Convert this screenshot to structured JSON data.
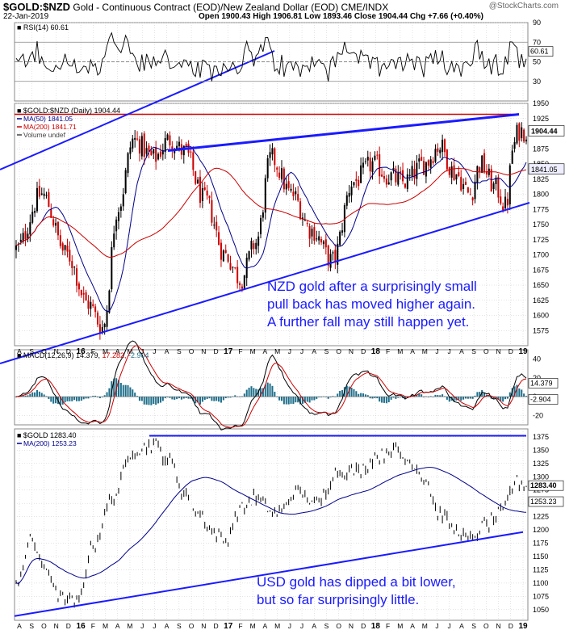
{
  "header": {
    "symbol": "$GOLD:$NZD",
    "subtitle": "Gold - Continuous Contract (EOD)/New Zealand Dollar (EOD)  CME/INDX",
    "date": "22-Jan-2019",
    "ohlc": "Open 1900.43  High 1906.81  Low 1893.46  Close 1904.44  Chg +7.66 (+0.40%)",
    "brand": "@StockCharts.com"
  },
  "colors": {
    "price_red": "#cc0000",
    "price_black": "#000000",
    "ma50": "#00008b",
    "ma200": "#cc0000",
    "annotation_line": "#1a1aff",
    "resistance": "#d40000",
    "macd_hist": "#1f6f8b",
    "grid": "#c8c8c8",
    "annotation_text": "#1a1aff"
  },
  "x_axis_labels": [
    "A",
    "S",
    "O",
    "N",
    "D",
    "16",
    "F",
    "M",
    "A",
    "M",
    "J",
    "J",
    "A",
    "S",
    "O",
    "N",
    "D",
    "17",
    "F",
    "M",
    "A",
    "M",
    "J",
    "J",
    "A",
    "S",
    "O",
    "N",
    "D",
    "18",
    "F",
    "M",
    "A",
    "M",
    "J",
    "J",
    "A",
    "S",
    "O",
    "N",
    "D",
    "19"
  ],
  "chart_data": [
    {
      "type": "line",
      "panel": "rsi",
      "legend": "RSI(14) 60.61",
      "last_value_label": "60.61",
      "ylim": [
        10,
        90
      ],
      "ticks": [
        30,
        50,
        70,
        90
      ],
      "reference_lines": [
        30,
        70
      ]
    },
    {
      "type": "candlestick",
      "panel": "main",
      "legend": "$GOLD:$NZD (Daily) 1904.44",
      "series": [
        {
          "name": "MA(50) 1841.05",
          "last": 1841.05
        },
        {
          "name": "MA(200) 1841.71",
          "last": 1841.71
        },
        {
          "name": "Volume undef"
        }
      ],
      "last_value_label": "1904.44",
      "ma_label": "1841.05",
      "ylim": [
        1550,
        1950
      ],
      "ticks": [
        1575,
        1600,
        1625,
        1650,
        1675,
        1700,
        1725,
        1750,
        1775,
        1800,
        1825,
        1850,
        1875,
        1900,
        1925,
        1950
      ],
      "anchors": [
        [
          0,
          1710
        ],
        [
          0.05,
          1800
        ],
        [
          0.1,
          1700
        ],
        [
          0.14,
          1620
        ],
        [
          0.17,
          1580
        ],
        [
          0.2,
          1780
        ],
        [
          0.23,
          1890
        ],
        [
          0.27,
          1860
        ],
        [
          0.3,
          1890
        ],
        [
          0.33,
          1870
        ],
        [
          0.37,
          1790
        ],
        [
          0.41,
          1700
        ],
        [
          0.44,
          1660
        ],
        [
          0.47,
          1720
        ],
        [
          0.5,
          1860
        ],
        [
          0.54,
          1800
        ],
        [
          0.58,
          1740
        ],
        [
          0.62,
          1690
        ],
        [
          0.66,
          1820
        ],
        [
          0.7,
          1850
        ],
        [
          0.73,
          1830
        ],
        [
          0.76,
          1820
        ],
        [
          0.8,
          1850
        ],
        [
          0.83,
          1880
        ],
        [
          0.86,
          1835
        ],
        [
          0.89,
          1800
        ],
        [
          0.91,
          1850
        ],
        [
          0.94,
          1810
        ],
        [
          0.96,
          1780
        ],
        [
          0.975,
          1880
        ],
        [
          0.985,
          1905
        ],
        [
          1,
          1904
        ]
      ],
      "annotation": [
        "NZD gold after a surprisingly small",
        "pull back has moved higher again.",
        "A further fall may still happen yet."
      ]
    },
    {
      "type": "line",
      "panel": "macd",
      "legend_prefix": "MACD(12,26,9)",
      "legend_values": [
        "14.379",
        "17.282",
        "-2.904"
      ],
      "last_value_labels": [
        "14.379",
        "-2.904"
      ],
      "ylim": [
        -30,
        50
      ],
      "ticks": [
        -20,
        0,
        20,
        40
      ]
    },
    {
      "type": "line",
      "panel": "gold_usd",
      "legend": "$GOLD 1283.40",
      "series": [
        {
          "name": "MA(200) 1253.23",
          "last": 1253.23
        }
      ],
      "last_value_labels": [
        "1283.40",
        "1253.23"
      ],
      "ylim": [
        1030,
        1390
      ],
      "ticks": [
        1050,
        1075,
        1100,
        1125,
        1150,
        1175,
        1200,
        1225,
        1250,
        1275,
        1300,
        1325,
        1350,
        1375
      ],
      "anchors": [
        [
          0,
          1100
        ],
        [
          0.03,
          1180
        ],
        [
          0.06,
          1120
        ],
        [
          0.09,
          1070
        ],
        [
          0.12,
          1060
        ],
        [
          0.15,
          1170
        ],
        [
          0.19,
          1260
        ],
        [
          0.23,
          1350
        ],
        [
          0.27,
          1360
        ],
        [
          0.3,
          1330
        ],
        [
          0.33,
          1270
        ],
        [
          0.36,
          1230
        ],
        [
          0.39,
          1190
        ],
        [
          0.41,
          1180
        ],
        [
          0.44,
          1240
        ],
        [
          0.47,
          1260
        ],
        [
          0.51,
          1230
        ],
        [
          0.55,
          1270
        ],
        [
          0.59,
          1250
        ],
        [
          0.63,
          1310
        ],
        [
          0.67,
          1310
        ],
        [
          0.71,
          1340
        ],
        [
          0.74,
          1350
        ],
        [
          0.77,
          1330
        ],
        [
          0.8,
          1300
        ],
        [
          0.83,
          1230
        ],
        [
          0.86,
          1200
        ],
        [
          0.89,
          1180
        ],
        [
          0.92,
          1210
        ],
        [
          0.95,
          1230
        ],
        [
          0.98,
          1290
        ],
        [
          1,
          1283
        ]
      ],
      "annotation": [
        "USD gold has dipped a bit lower,",
        "but so far surprisingly little."
      ]
    }
  ]
}
